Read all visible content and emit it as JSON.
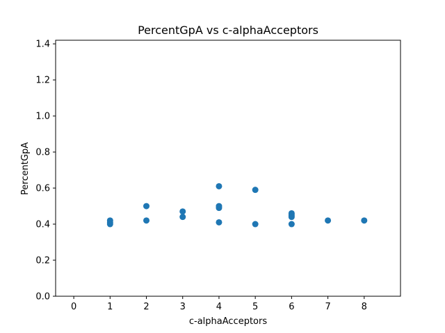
{
  "chart_data": {
    "type": "scatter",
    "title": "PercentGpA vs c-alphaAcceptors",
    "xlabel": "c-alphaAcceptors",
    "ylabel": "PercentGpA",
    "xlim": [
      -0.5,
      9.0
    ],
    "ylim": [
      0.0,
      1.42
    ],
    "xticks": [
      0,
      1,
      2,
      3,
      4,
      5,
      6,
      7,
      8
    ],
    "yticks": [
      0.0,
      0.2,
      0.4,
      0.6,
      0.8,
      1.0,
      1.2,
      1.4
    ],
    "ytick_labels": [
      "0.0",
      "0.2",
      "0.4",
      "0.6",
      "0.8",
      "1.0",
      "1.2",
      "1.4"
    ],
    "grid": false,
    "marker_color": "#1f77b4",
    "points": [
      {
        "x": 1,
        "y": 0.42
      },
      {
        "x": 1,
        "y": 0.41
      },
      {
        "x": 1,
        "y": 0.4
      },
      {
        "x": 2,
        "y": 0.5
      },
      {
        "x": 2,
        "y": 0.42
      },
      {
        "x": 3,
        "y": 0.47
      },
      {
        "x": 3,
        "y": 0.44
      },
      {
        "x": 4,
        "y": 0.61
      },
      {
        "x": 4,
        "y": 0.5
      },
      {
        "x": 4,
        "y": 0.49
      },
      {
        "x": 4,
        "y": 0.41
      },
      {
        "x": 5,
        "y": 0.59
      },
      {
        "x": 5,
        "y": 0.4
      },
      {
        "x": 6,
        "y": 0.46
      },
      {
        "x": 6,
        "y": 0.45
      },
      {
        "x": 6,
        "y": 0.44
      },
      {
        "x": 6,
        "y": 0.4
      },
      {
        "x": 7,
        "y": 0.42
      },
      {
        "x": 8,
        "y": 0.42
      }
    ]
  }
}
